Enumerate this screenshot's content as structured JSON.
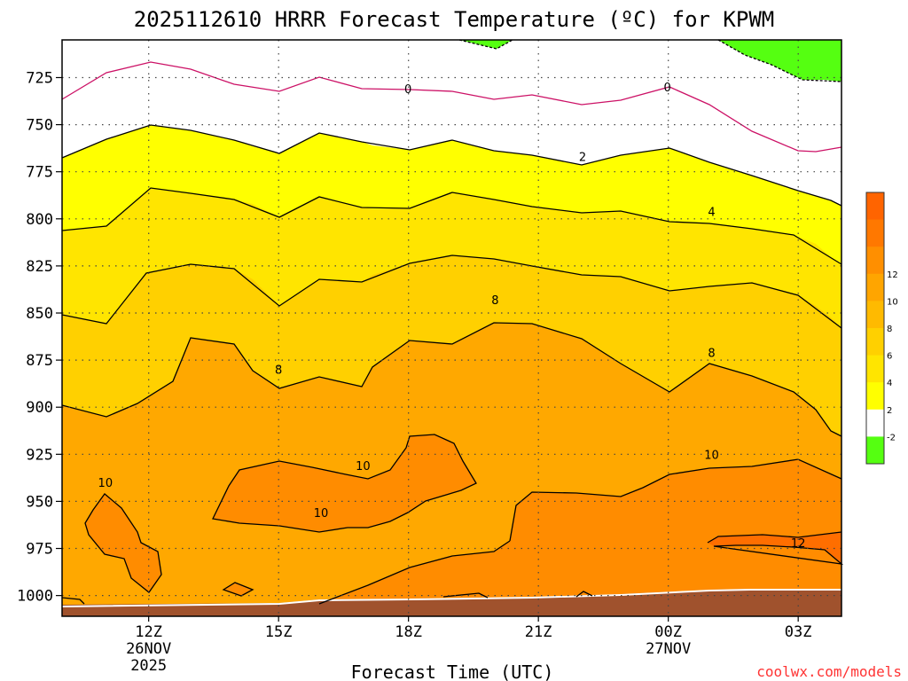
{
  "chart_data": {
    "type": "heatmap",
    "title": "2025112610 HRRR Forecast Temperature (ºC) for KPWM",
    "xlabel": "Forecast Time (UTC)",
    "ylabel": "",
    "x_ticks": [
      {
        "h": 12,
        "label": "12Z",
        "sub1": "26NOV",
        "sub2": "2025"
      },
      {
        "h": 15,
        "label": "15Z",
        "sub1": "",
        "sub2": ""
      },
      {
        "h": 18,
        "label": "18Z",
        "sub1": "",
        "sub2": ""
      },
      {
        "h": 21,
        "label": "21Z",
        "sub1": "",
        "sub2": ""
      },
      {
        "h": 24,
        "label": "00Z",
        "sub1": "27NOV",
        "sub2": ""
      },
      {
        "h": 27,
        "label": "03Z",
        "sub1": "",
        "sub2": ""
      }
    ],
    "xlim": [
      10,
      28
    ],
    "y_ticks": [
      725,
      750,
      775,
      800,
      825,
      850,
      875,
      900,
      925,
      950,
      975,
      1000
    ],
    "ylim": [
      705,
      1011
    ],
    "grid": true,
    "colorbar": {
      "labels": [
        "-2",
        "2",
        "4",
        "6",
        "8",
        "10",
        "12"
      ],
      "colors": [
        "#55ff11",
        "#ffffff",
        "#ffff00",
        "#ffe500",
        "#ffd000",
        "#ffba00",
        "#ffa500",
        "#ff8f00",
        "#ff7800",
        "#ff6400"
      ]
    },
    "fill_colors": {
      "below_0": "#55ff11",
      "0_to_2": "#ffffff",
      "2_to_4": "#ffff00",
      "4_to_6": "#ffe500",
      "6_to_8": "#ffd000",
      "8_to_10": "#ffa800",
      "10_to_12": "#ff8c00",
      "above_12": "#ff6e00",
      "ground": "#a0522d"
    },
    "contour_labels": [
      {
        "text": "0",
        "h": 17.99,
        "p": 731
      },
      {
        "text": "0",
        "h": 23.98,
        "p": 730
      },
      {
        "text": "2",
        "h": 22.02,
        "p": 767
      },
      {
        "text": "4",
        "h": 25.0,
        "p": 796
      },
      {
        "text": "8",
        "h": 20.0,
        "p": 843
      },
      {
        "text": "8",
        "h": 15.0,
        "p": 880
      },
      {
        "text": "8",
        "h": 25.0,
        "p": 871
      },
      {
        "text": "10",
        "h": 11.0,
        "p": 940
      },
      {
        "text": "10",
        "h": 16.95,
        "p": 931
      },
      {
        "text": "10",
        "h": 15.98,
        "p": 956
      },
      {
        "text": "10",
        "h": 25.0,
        "p": 925
      },
      {
        "text": "12",
        "h": 27.0,
        "p": 972
      }
    ]
  },
  "credit": "coolwx.com/models"
}
